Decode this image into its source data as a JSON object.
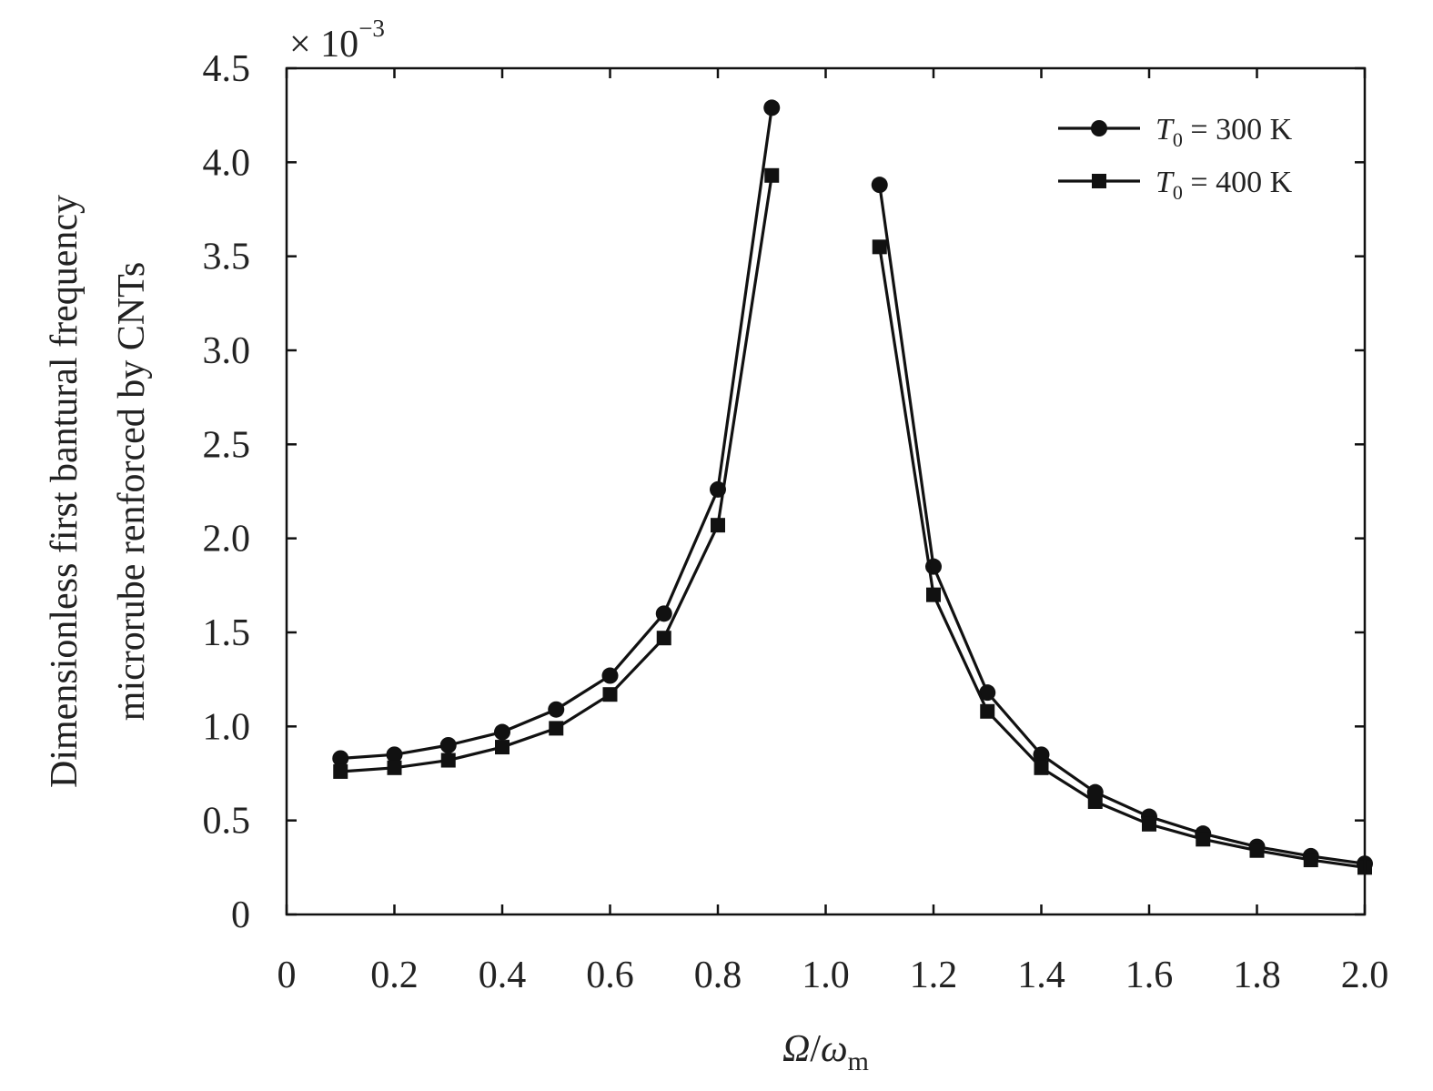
{
  "chart_data": {
    "type": "line",
    "xlabel": {
      "main": "Ω",
      "sep": "/",
      "sym": "ω",
      "sub": "m"
    },
    "ylabel_lines": [
      "Dimensionless first bantural frequency",
      "microrube renforced by CNTs"
    ],
    "y_multiplier": {
      "base": "× 10",
      "exp": "−3"
    },
    "xlim": [
      0,
      2.0
    ],
    "ylim": [
      0,
      4.5
    ],
    "x_ticks": [
      0,
      0.2,
      0.4,
      0.6,
      0.8,
      1.0,
      1.2,
      1.4,
      1.6,
      1.8,
      2.0
    ],
    "x_tick_labels": [
      "0",
      "0.2",
      "0.4",
      "0.6",
      "0.8",
      "1.0",
      "1.2",
      "1.4",
      "1.6",
      "1.8",
      "2.0"
    ],
    "y_ticks": [
      0,
      0.5,
      1.0,
      1.5,
      2.0,
      2.5,
      3.0,
      3.5,
      4.0,
      4.5
    ],
    "y_tick_labels": [
      "0",
      "0.5",
      "1.0",
      "1.5",
      "2.0",
      "2.5",
      "3.0",
      "3.5",
      "4.0",
      "4.5"
    ],
    "grid": false,
    "legend_position": "top-right",
    "series": [
      {
        "name": {
          "sym": "T",
          "sub": "0",
          "rest": " = 300 K"
        },
        "marker": "circle",
        "color": "#111111",
        "segments": [
          {
            "x": [
              0.1,
              0.2,
              0.3,
              0.4,
              0.5,
              0.6,
              0.7,
              0.8,
              0.9
            ],
            "y": [
              0.83,
              0.85,
              0.9,
              0.97,
              1.09,
              1.27,
              1.6,
              2.26,
              4.29
            ]
          },
          {
            "x": [
              1.1,
              1.2,
              1.3,
              1.4,
              1.5,
              1.6,
              1.7,
              1.8,
              1.9,
              2.0
            ],
            "y": [
              3.88,
              1.85,
              1.18,
              0.85,
              0.65,
              0.52,
              0.43,
              0.36,
              0.31,
              0.27
            ]
          }
        ]
      },
      {
        "name": {
          "sym": "T",
          "sub": "0",
          "rest": " = 400 K"
        },
        "marker": "square",
        "color": "#111111",
        "segments": [
          {
            "x": [
              0.1,
              0.2,
              0.3,
              0.4,
              0.5,
              0.6,
              0.7,
              0.8,
              0.9
            ],
            "y": [
              0.76,
              0.78,
              0.82,
              0.89,
              0.99,
              1.17,
              1.47,
              2.07,
              3.93
            ]
          },
          {
            "x": [
              1.1,
              1.2,
              1.3,
              1.4,
              1.5,
              1.6,
              1.7,
              1.8,
              1.9,
              2.0
            ],
            "y": [
              3.55,
              1.7,
              1.08,
              0.78,
              0.6,
              0.48,
              0.4,
              0.34,
              0.29,
              0.25
            ]
          }
        ]
      }
    ]
  }
}
